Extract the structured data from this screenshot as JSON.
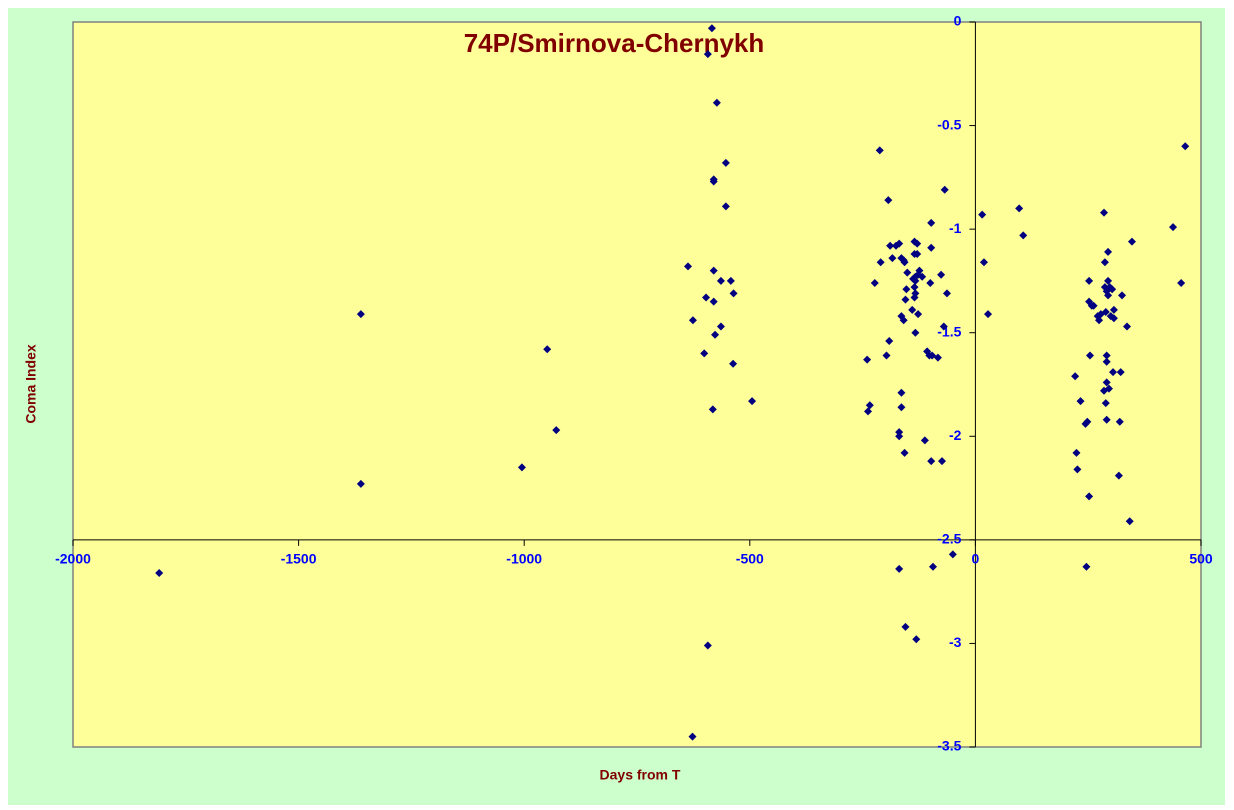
{
  "chart_data": {
    "type": "scatter",
    "title": "74P/Smirnova-Chernykh",
    "xlabel": "Days from  T",
    "ylabel": "Coma Index",
    "color": "#000080",
    "xlim": [
      -2000,
      500
    ],
    "xticks": [
      -2000,
      -1500,
      -1000,
      -500,
      0,
      500
    ],
    "ylim": [
      -3.5,
      0
    ],
    "yticks": [
      0,
      -0.5,
      -1,
      -1.5,
      -2,
      -2.5,
      -3,
      -3.5
    ],
    "x_axis_at": -2.5,
    "y_axis_at": 0,
    "x": [
      -1809,
      -1362,
      -1362,
      -949,
      -929,
      -1005,
      -637,
      -626,
      -627,
      -601,
      -597,
      -593,
      -593,
      -584,
      -582,
      -580,
      -580,
      -580,
      -577,
      -580,
      -573,
      -564,
      -564,
      -553,
      -553,
      -542,
      -536,
      -537,
      -495,
      -240,
      -238,
      -234,
      -223,
      -212,
      -210,
      -197,
      -193,
      -191,
      -189,
      -184,
      -176,
      -169,
      -169,
      -169,
      -169,
      -164,
      -164,
      -164,
      -164,
      -159,
      -159,
      -157,
      -157,
      -155,
      -155,
      -153,
      -151,
      -140,
      -138,
      -135,
      -135,
      -135,
      -135,
      -133,
      -133,
      -133,
      -133,
      -131,
      -129,
      -129,
      -127,
      -127,
      -124,
      -118,
      -112,
      -107,
      -102,
      -100,
      -98,
      -98,
      -98,
      -96,
      -94,
      -83,
      -76,
      -74,
      -70,
      -68,
      -63,
      -50,
      15,
      19,
      28,
      97,
      106,
      221,
      224,
      226,
      233,
      244,
      246,
      248,
      252,
      252,
      252,
      254,
      258,
      262,
      271,
      274,
      278,
      285,
      285,
      287,
      287,
      289,
      289,
      291,
      291,
      291,
      291,
      291,
      294,
      294,
      294,
      296,
      298,
      300,
      303,
      305,
      307,
      307,
      318,
      320,
      322,
      325,
      336,
      342,
      347,
      438,
      456,
      465
    ],
    "y": [
      -2.66,
      -1.41,
      -2.23,
      -1.58,
      -1.97,
      -2.15,
      -1.18,
      -1.44,
      -3.45,
      -1.6,
      -1.33,
      -3.01,
      -0.155,
      -0.03,
      -1.87,
      -1.35,
      -0.76,
      -0.77,
      -1.51,
      -1.2,
      -0.39,
      -1.25,
      -1.47,
      -0.68,
      -0.89,
      -1.25,
      -1.31,
      -1.65,
      -1.83,
      -1.63,
      -1.88,
      -1.85,
      -1.26,
      -0.62,
      -1.16,
      -1.61,
      -0.86,
      -1.54,
      -1.08,
      -1.14,
      -1.08,
      -1.07,
      -2.64,
      -2.0,
      -1.98,
      -1.14,
      -1.42,
      -1.79,
      -1.86,
      -1.44,
      -1.15,
      -1.16,
      -2.08,
      -1.34,
      -2.92,
      -1.29,
      -1.21,
      -1.39,
      -1.24,
      -1.33,
      -1.28,
      -1.06,
      -1.12,
      -1.23,
      -1.25,
      -1.31,
      -1.5,
      -2.98,
      -1.07,
      -1.12,
      -1.22,
      -1.41,
      -1.2,
      -1.23,
      -2.02,
      -1.59,
      -1.61,
      -1.26,
      -1.09,
      -0.97,
      -2.12,
      -1.61,
      -2.63,
      -1.62,
      -1.22,
      -2.12,
      -1.47,
      -0.81,
      -1.31,
      -2.57,
      -0.93,
      -1.16,
      -1.41,
      -0.9,
      -1.03,
      -1.71,
      -2.08,
      -2.16,
      -1.83,
      -1.94,
      -2.63,
      -1.93,
      -1.35,
      -1.25,
      -2.29,
      -1.61,
      -1.37,
      -1.37,
      -1.42,
      -1.44,
      -1.41,
      -1.78,
      -0.92,
      -1.28,
      -1.16,
      -1.4,
      -1.84,
      -1.61,
      -1.64,
      -1.74,
      -1.3,
      -1.92,
      -1.25,
      -1.32,
      -1.11,
      -1.77,
      -1.28,
      -1.42,
      -1.29,
      -1.69,
      -1.39,
      -1.43,
      -2.19,
      -1.93,
      -1.69,
      -1.32,
      -1.47,
      -2.41,
      -1.06,
      -0.99,
      -1.26,
      -0.6
    ]
  }
}
